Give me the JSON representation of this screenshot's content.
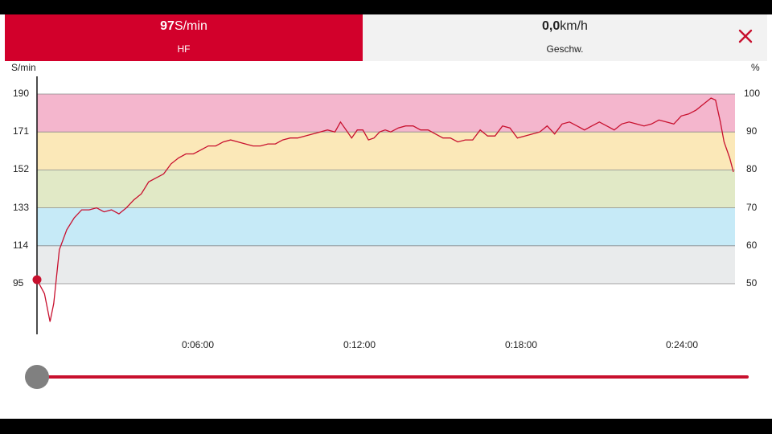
{
  "tabs": {
    "hf": {
      "value": "97",
      "unit": "S/min",
      "label": "HF",
      "color": "#d2002b"
    },
    "speed": {
      "value": "0,0",
      "unit": "km/h",
      "label": "Geschw."
    }
  },
  "close_icon": "close-icon",
  "chart_data": {
    "type": "line",
    "ylabel_left": "S/min",
    "ylabel_right": "%",
    "y_ticks_left": [
      "190",
      "171",
      "152",
      "133",
      "114",
      "95"
    ],
    "y_ticks_right": [
      "100",
      "90",
      "80",
      "70",
      "60",
      "50"
    ],
    "x_ticks": [
      "0:06:00",
      "0:12:00",
      "0:18:00",
      "0:24:00"
    ],
    "zones": [
      {
        "from": 171,
        "to": 190,
        "color": "#f4b6cd"
      },
      {
        "from": 152,
        "to": 171,
        "color": "#fbe8b8"
      },
      {
        "from": 133,
        "to": 152,
        "color": "#e1e9c6"
      },
      {
        "from": 114,
        "to": 133,
        "color": "#c6eaf7"
      },
      {
        "from": 95,
        "to": 114,
        "color": "#e9ebec"
      }
    ],
    "ylim": [
      75,
      200
    ],
    "xlim_seconds": [
      0,
      1580
    ],
    "line_color": "#c8102e",
    "series": [
      {
        "values": [
          [
            0,
            97
          ],
          [
            20,
            90
          ],
          [
            35,
            76
          ],
          [
            45,
            85
          ],
          [
            60,
            112
          ],
          [
            80,
            122
          ],
          [
            100,
            128
          ],
          [
            120,
            132
          ],
          [
            140,
            132
          ],
          [
            160,
            133
          ],
          [
            180,
            131
          ],
          [
            200,
            132
          ],
          [
            220,
            130
          ],
          [
            240,
            133
          ],
          [
            260,
            137
          ],
          [
            280,
            140
          ],
          [
            300,
            146
          ],
          [
            320,
            148
          ],
          [
            340,
            150
          ],
          [
            360,
            155
          ],
          [
            380,
            158
          ],
          [
            400,
            160
          ],
          [
            420,
            160
          ],
          [
            440,
            162
          ],
          [
            460,
            164
          ],
          [
            480,
            164
          ],
          [
            500,
            166
          ],
          [
            520,
            167
          ],
          [
            540,
            166
          ],
          [
            560,
            165
          ],
          [
            580,
            164
          ],
          [
            600,
            164
          ],
          [
            620,
            165
          ],
          [
            640,
            165
          ],
          [
            660,
            167
          ],
          [
            680,
            168
          ],
          [
            700,
            168
          ],
          [
            720,
            169
          ],
          [
            740,
            170
          ],
          [
            760,
            171
          ],
          [
            780,
            172
          ],
          [
            800,
            171
          ],
          [
            815,
            176
          ],
          [
            830,
            172
          ],
          [
            845,
            168
          ],
          [
            860,
            172
          ],
          [
            875,
            172
          ],
          [
            890,
            167
          ],
          [
            905,
            168
          ],
          [
            920,
            171
          ],
          [
            935,
            172
          ],
          [
            950,
            171
          ],
          [
            970,
            173
          ],
          [
            990,
            174
          ],
          [
            1010,
            174
          ],
          [
            1030,
            172
          ],
          [
            1050,
            172
          ],
          [
            1070,
            170
          ],
          [
            1090,
            168
          ],
          [
            1110,
            168
          ],
          [
            1130,
            166
          ],
          [
            1150,
            167
          ],
          [
            1170,
            167
          ],
          [
            1190,
            172
          ],
          [
            1210,
            169
          ],
          [
            1230,
            169
          ],
          [
            1250,
            174
          ],
          [
            1270,
            173
          ],
          [
            1290,
            168
          ],
          [
            1310,
            169
          ],
          [
            1330,
            170
          ],
          [
            1350,
            171
          ],
          [
            1370,
            174
          ],
          [
            1390,
            170
          ],
          [
            1410,
            175
          ],
          [
            1430,
            176
          ],
          [
            1450,
            174
          ],
          [
            1470,
            172
          ],
          [
            1490,
            174
          ],
          [
            1510,
            176
          ],
          [
            1530,
            174
          ],
          [
            1550,
            172
          ],
          [
            1570,
            175
          ],
          [
            1590,
            176
          ],
          [
            1610,
            175
          ],
          [
            1630,
            174
          ],
          [
            1650,
            175
          ],
          [
            1670,
            177
          ],
          [
            1690,
            176
          ],
          [
            1710,
            175
          ],
          [
            1730,
            179
          ],
          [
            1750,
            180
          ],
          [
            1770,
            182
          ],
          [
            1790,
            185
          ],
          [
            1810,
            188
          ],
          [
            1822,
            187
          ],
          [
            1835,
            176
          ],
          [
            1845,
            166
          ],
          [
            1860,
            158
          ],
          [
            1870,
            151
          ]
        ]
      }
    ],
    "marker_value": 97
  },
  "slider": {
    "position_fraction": 0,
    "track_color": "#c8102e",
    "thumb_color": "#808080"
  }
}
